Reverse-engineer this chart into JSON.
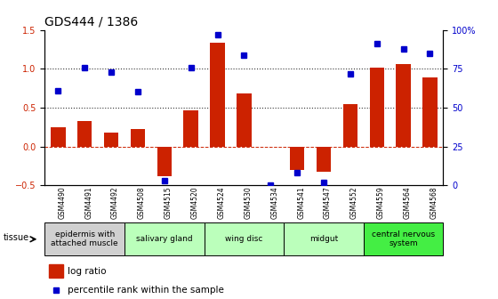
{
  "title": "GDS444 / 1386",
  "samples": [
    "GSM4490",
    "GSM4491",
    "GSM4492",
    "GSM4508",
    "GSM4515",
    "GSM4520",
    "GSM4524",
    "GSM4530",
    "GSM4534",
    "GSM4541",
    "GSM4547",
    "GSM4552",
    "GSM4559",
    "GSM4564",
    "GSM4568"
  ],
  "log_ratio": [
    0.25,
    0.33,
    0.18,
    0.22,
    -0.38,
    0.46,
    1.33,
    0.68,
    0.0,
    -0.3,
    -0.32,
    0.55,
    1.02,
    1.06,
    0.89
  ],
  "percentile": [
    61,
    76,
    73,
    60,
    3,
    76,
    97,
    84,
    0,
    8,
    2,
    72,
    91,
    88,
    85
  ],
  "bar_color": "#cc2200",
  "dot_color": "#0000cc",
  "ylim_left": [
    -0.5,
    1.5
  ],
  "ylim_right": [
    0,
    100
  ],
  "yticks_left": [
    -0.5,
    0.0,
    0.5,
    1.0,
    1.5
  ],
  "yticks_right": [
    0,
    25,
    50,
    75,
    100
  ],
  "ytick_labels_right": [
    "0",
    "25",
    "50",
    "75",
    "100%"
  ],
  "hlines": [
    0.5,
    1.0
  ],
  "tissue_groups": [
    {
      "label": "epidermis with\nattached muscle",
      "indices": [
        0,
        1,
        2
      ],
      "color": "#d0d0d0"
    },
    {
      "label": "salivary gland",
      "indices": [
        3,
        4,
        5
      ],
      "color": "#bbffbb"
    },
    {
      "label": "wing disc",
      "indices": [
        6,
        7,
        8
      ],
      "color": "#bbffbb"
    },
    {
      "label": "midgut",
      "indices": [
        9,
        10,
        11
      ],
      "color": "#bbffbb"
    },
    {
      "label": "central nervous\nsystem",
      "indices": [
        12,
        13,
        14
      ],
      "color": "#44ee44"
    }
  ],
  "background_color": "#ffffff",
  "zeroline_color": "#cc2200",
  "dotted_line_color": "#333333",
  "title_fontsize": 10,
  "tick_fontsize": 7,
  "tissue_fontsize": 6.5,
  "legend_fontsize": 7.5
}
